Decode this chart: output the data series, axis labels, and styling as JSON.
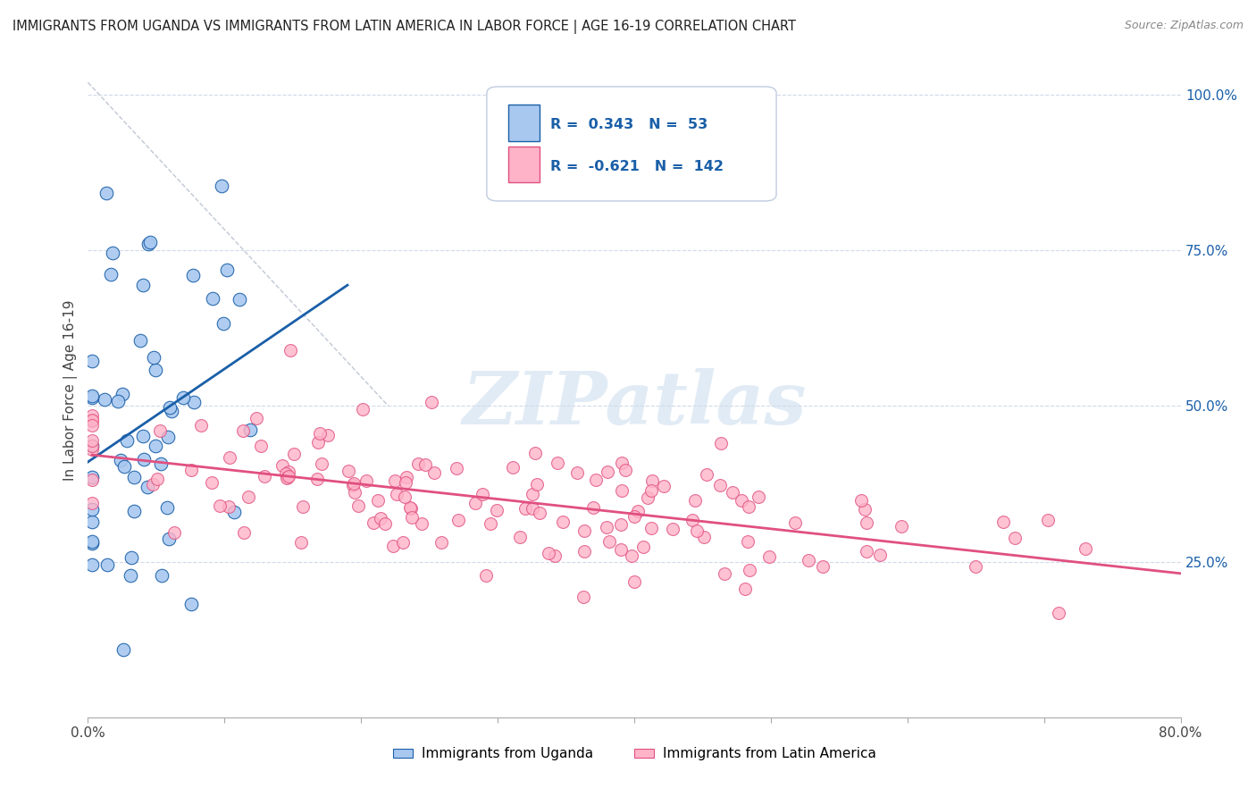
{
  "title": "IMMIGRANTS FROM UGANDA VS IMMIGRANTS FROM LATIN AMERICA IN LABOR FORCE | AGE 16-19 CORRELATION CHART",
  "source": "Source: ZipAtlas.com",
  "ylabel": "In Labor Force | Age 16-19",
  "xlim": [
    0.0,
    0.8
  ],
  "ylim": [
    0.0,
    1.05
  ],
  "yticks_right": [
    0.0,
    0.25,
    0.5,
    0.75,
    1.0
  ],
  "ytick_labels_right": [
    "",
    "25.0%",
    "50.0%",
    "75.0%",
    "100.0%"
  ],
  "uganda_R": 0.343,
  "uganda_N": 53,
  "latin_R": -0.621,
  "latin_N": 142,
  "uganda_color": "#a8c8f0",
  "uganda_line_color": "#1a5fa8",
  "latin_color": "#ffb3c8",
  "latin_line_color": "#e05080",
  "r_label_color": "#1a5fa8"
}
